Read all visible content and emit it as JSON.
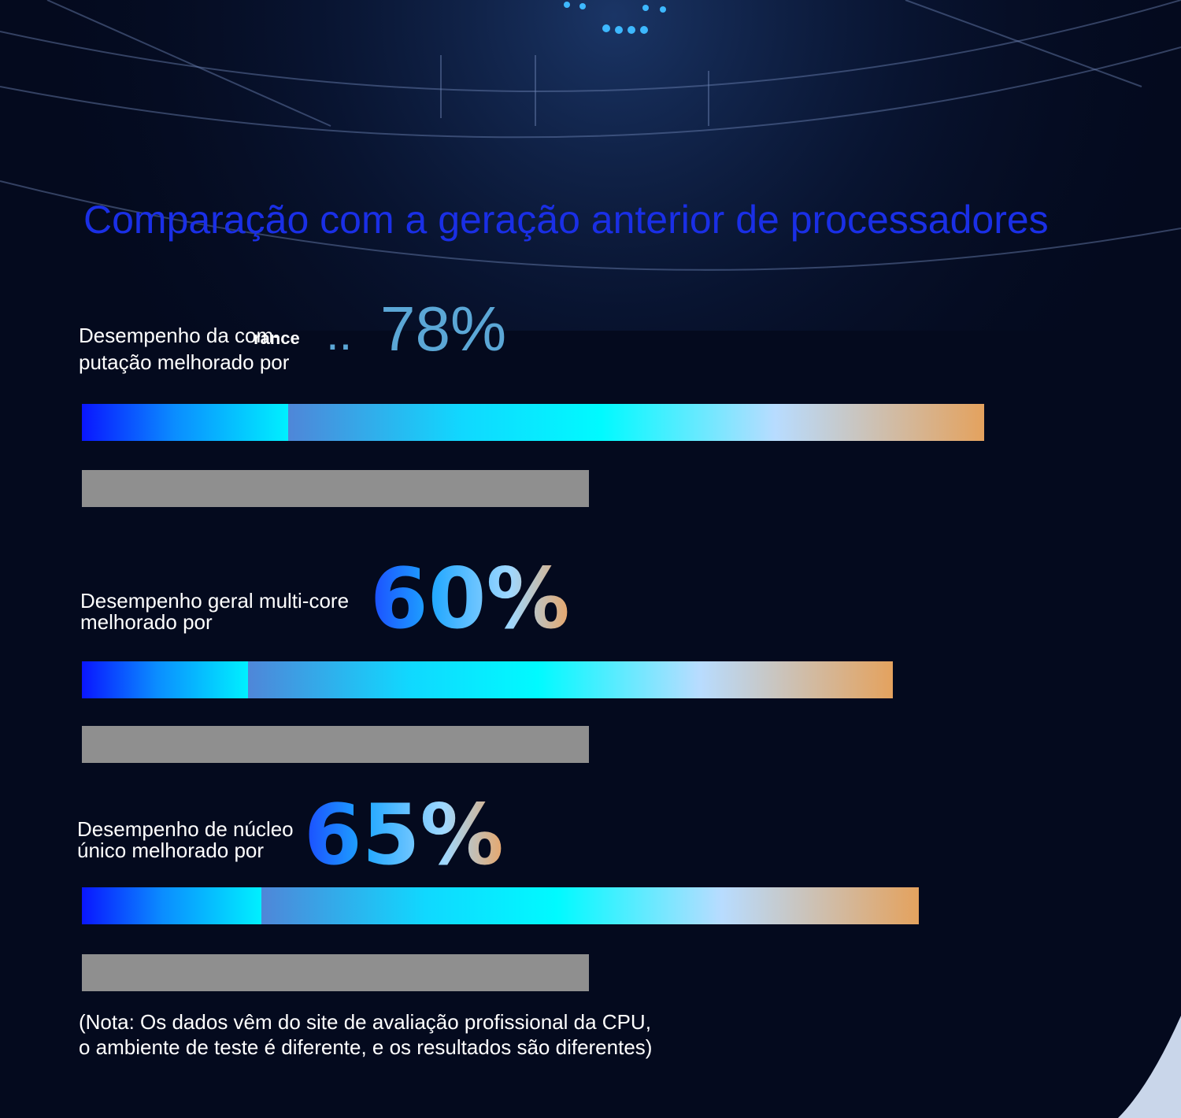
{
  "chart_data": {
    "type": "bar",
    "title": "Comparação com a geração anterior de processadores",
    "groups": [
      {
        "label": "Desempenho da com-\nputação melhorado por",
        "overlay_text": "rance",
        "percent_label": "78%",
        "percent_prefix": "..",
        "values": {
          "new": 178,
          "previous": 100
        }
      },
      {
        "label": "Desempenho geral multi-core\nmelhorado por",
        "percent_label": "60%",
        "values": {
          "new": 160,
          "previous": 100
        }
      },
      {
        "label": "Desempenho de núcleo\núnico melhorado por",
        "percent_label": "65%",
        "values": {
          "new": 165,
          "previous": 100
        }
      }
    ],
    "grid": false,
    "legend": "none"
  },
  "note": "(Nota: Os dados vêm do site de avaliação profissional da CPU,\no ambiente de teste é diferente, e os resultados são diferentes)",
  "colors": {
    "title": "#1a2fe6",
    "previous_bar": "#8f8f8f",
    "background": "#040a1e"
  }
}
